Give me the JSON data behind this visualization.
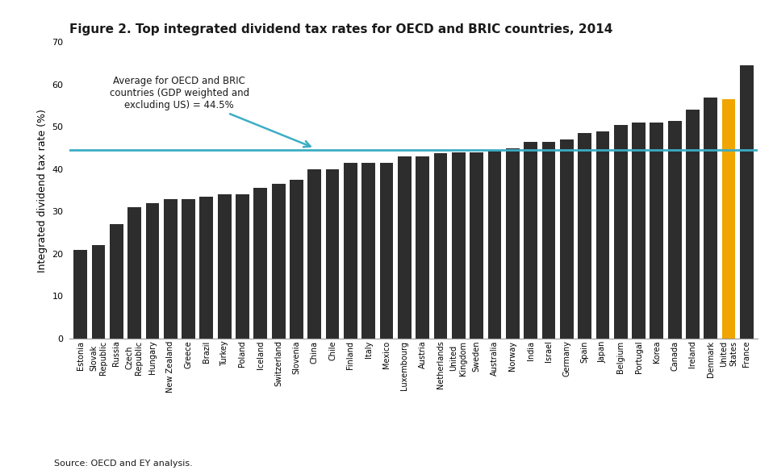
{
  "title": "Figure 2. Top integrated dividend tax rates for OECD and BRIC countries, 2014",
  "ylabel": "Integrated dividend tax rate (%)",
  "source": "Source: OECD and EY analysis.",
  "average_line": 44.5,
  "annotation_text": "Average for OECD and BRIC\ncountries (GDP weighted and\nexcluding US) = 44.5%",
  "ylim": [
    0,
    70
  ],
  "yticks": [
    0,
    10,
    20,
    30,
    40,
    50,
    60,
    70
  ],
  "countries": [
    "Estonia",
    "Slovak\nRepublic",
    "Russia",
    "Czech\nRepublic",
    "Hungary",
    "New Zealand",
    "Greece",
    "Brazil",
    "Turkey",
    "Poland",
    "Iceland",
    "Switzerland",
    "Slovenia",
    "China",
    "Chile",
    "Finland",
    "Italy",
    "Mexico",
    "Luxembourg",
    "Austria",
    "Netherlands",
    "United\nKingdom",
    "Sweden",
    "Australia",
    "Norway",
    "India",
    "Israel",
    "Germany",
    "Spain",
    "Japan",
    "Belgium",
    "Portugal",
    "Korea",
    "Canada",
    "Ireland",
    "Denmark",
    "United\nStates",
    "France"
  ],
  "values": [
    21.0,
    22.0,
    27.0,
    31.0,
    32.0,
    33.0,
    33.0,
    33.5,
    34.0,
    34.0,
    35.5,
    36.5,
    37.5,
    40.0,
    40.0,
    41.5,
    41.5,
    41.5,
    43.0,
    43.1,
    43.8,
    44.0,
    44.0,
    44.5,
    45.0,
    46.5,
    46.5,
    47.0,
    48.5,
    49.0,
    50.5,
    51.0,
    51.0,
    51.5,
    54.0,
    57.0,
    56.5,
    64.5
  ],
  "bar_colors": [
    "#2d2d2d",
    "#2d2d2d",
    "#2d2d2d",
    "#2d2d2d",
    "#2d2d2d",
    "#2d2d2d",
    "#2d2d2d",
    "#2d2d2d",
    "#2d2d2d",
    "#2d2d2d",
    "#2d2d2d",
    "#2d2d2d",
    "#2d2d2d",
    "#2d2d2d",
    "#2d2d2d",
    "#2d2d2d",
    "#2d2d2d",
    "#2d2d2d",
    "#2d2d2d",
    "#2d2d2d",
    "#2d2d2d",
    "#2d2d2d",
    "#2d2d2d",
    "#2d2d2d",
    "#2d2d2d",
    "#2d2d2d",
    "#2d2d2d",
    "#2d2d2d",
    "#2d2d2d",
    "#2d2d2d",
    "#2d2d2d",
    "#2d2d2d",
    "#2d2d2d",
    "#2d2d2d",
    "#2d2d2d",
    "#2d2d2d",
    "#f0a500",
    "#2d2d2d"
  ],
  "avg_line_color": "#3cadc4",
  "arrow_color": "#3cadc4",
  "background_color": "#ffffff",
  "title_fontsize": 11,
  "ylabel_fontsize": 9,
  "tick_fontsize": 8,
  "xtick_fontsize": 7,
  "annotation_fontsize": 8.5
}
